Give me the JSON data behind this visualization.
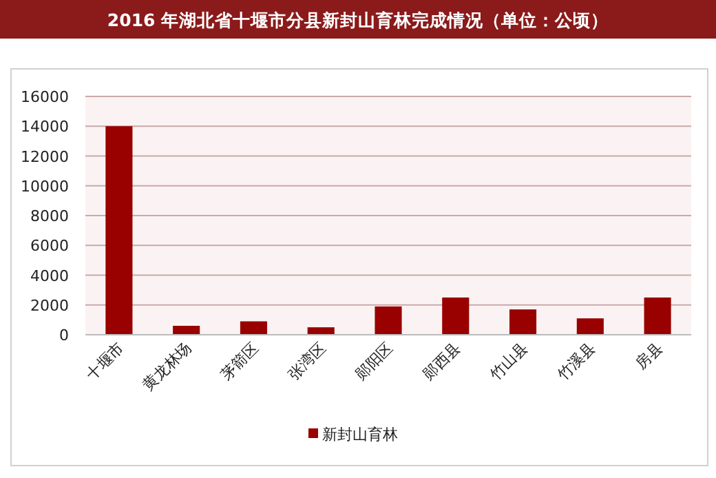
{
  "chart_data": {
    "type": "bar",
    "title": "2016 年湖北省十堰市分县新封山育林完成情况（单位：公顷）",
    "categories": [
      "十堰市",
      "黄龙林场",
      "茅箭区",
      "张湾区",
      "郧阳区",
      "郧西县",
      "竹山县",
      "竹溪县",
      "房县"
    ],
    "series": [
      {
        "name": "新封山育林",
        "color": "#990000",
        "values": [
          14000,
          600,
          900,
          500,
          1900,
          2500,
          1700,
          1100,
          2500
        ]
      }
    ],
    "ylim": [
      0,
      16000
    ],
    "yticks": [
      0,
      2000,
      4000,
      6000,
      8000,
      10000,
      12000,
      14000,
      16000
    ],
    "grid": "y",
    "legend": "bottom"
  }
}
